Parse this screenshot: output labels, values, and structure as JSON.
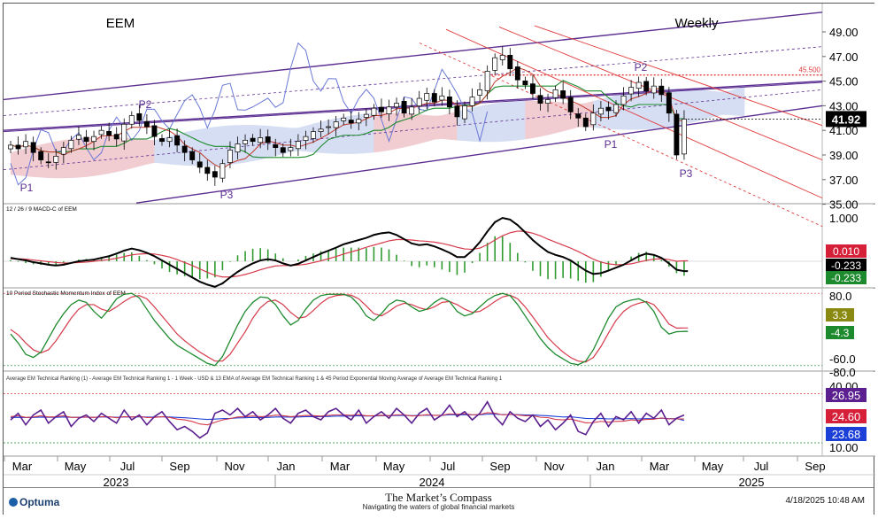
{
  "chart_data": [
    {
      "type": "candlestick",
      "title": "EEM",
      "subtitle": "Weekly",
      "y_ticks": [
        "49.00",
        "47.00",
        "45.00",
        "43.00",
        "41.00",
        "39.00",
        "37.00",
        "35.00"
      ],
      "ylim": [
        35,
        49
      ],
      "last_value": "41.92",
      "reference_level": {
        "value": 45.5,
        "label": "45.500"
      },
      "pivot_labels": [
        "P1",
        "P2",
        "P3",
        "P1",
        "P2",
        "P3"
      ],
      "weekly_close": [
        39.8,
        39.5,
        40.1,
        39.2,
        38.6,
        38.4,
        38.9,
        39.6,
        40.2,
        40.6,
        40.1,
        40.5,
        41.0,
        40.6,
        40.3,
        41.5,
        42.2,
        41.8,
        41.3,
        40.5,
        40.1,
        40.4,
        39.8,
        39.2,
        38.6,
        38.0,
        37.5,
        37.2,
        38.3,
        39.4,
        39.9,
        40.2,
        40.1,
        40.4,
        40.0,
        39.6,
        39.2,
        39.6,
        40.1,
        40.5,
        40.9,
        41.1,
        41.3,
        41.7,
        42.0,
        41.6,
        41.9,
        42.3,
        42.8,
        42.5,
        42.9,
        43.2,
        42.4,
        42.9,
        43.6,
        44.0,
        43.3,
        43.8,
        42.9,
        42.1,
        43.0,
        43.7,
        44.3,
        45.8,
        46.9,
        47.1,
        46.0,
        45.1,
        44.7,
        44.0,
        43.2,
        43.5,
        44.3,
        43.6,
        42.5,
        42.0,
        41.3,
        42.4,
        42.8,
        42.6,
        43.1,
        43.8,
        44.5,
        44.9,
        44.2,
        44.6,
        43.9,
        42.4,
        39.0,
        41.92
      ]
    },
    {
      "type": "line",
      "title": "12 / 26 / 9 MACD-C of EEM",
      "y_ticks": [
        "1.000"
      ],
      "badges": [
        "0.010",
        "-0.233",
        "-0.233"
      ],
      "macd": [
        0.08,
        0.05,
        0.02,
        -0.02,
        -0.05,
        -0.08,
        -0.1,
        -0.08,
        -0.04,
        0.0,
        0.02,
        0.04,
        0.08,
        0.12,
        0.18,
        0.25,
        0.3,
        0.26,
        0.2,
        0.12,
        0.02,
        -0.08,
        -0.18,
        -0.28,
        -0.38,
        -0.48,
        -0.55,
        -0.6,
        -0.52,
        -0.38,
        -0.25,
        -0.14,
        -0.05,
        0.02,
        0.05,
        0.02,
        -0.05,
        -0.1,
        -0.06,
        0.02,
        0.1,
        0.18,
        0.25,
        0.32,
        0.4,
        0.45,
        0.5,
        0.55,
        0.62,
        0.66,
        0.68,
        0.62,
        0.52,
        0.42,
        0.38,
        0.4,
        0.35,
        0.28,
        0.2,
        0.1,
        0.1,
        0.25,
        0.45,
        0.7,
        0.92,
        1.02,
        0.98,
        0.85,
        0.68,
        0.5,
        0.35,
        0.22,
        0.15,
        0.1,
        0.02,
        -0.1,
        -0.22,
        -0.3,
        -0.28,
        -0.22,
        -0.15,
        -0.08,
        0.02,
        0.12,
        0.18,
        0.15,
        0.08,
        -0.05,
        -0.2,
        -0.233
      ],
      "signal": [
        0.06,
        0.06,
        0.05,
        0.03,
        0.01,
        -0.01,
        -0.03,
        -0.04,
        -0.04,
        -0.03,
        -0.02,
        0.0,
        0.02,
        0.04,
        0.07,
        0.11,
        0.15,
        0.17,
        0.18,
        0.17,
        0.14,
        0.1,
        0.04,
        -0.03,
        -0.1,
        -0.18,
        -0.26,
        -0.33,
        -0.37,
        -0.37,
        -0.35,
        -0.31,
        -0.26,
        -0.2,
        -0.15,
        -0.11,
        -0.1,
        -0.1,
        -0.09,
        -0.07,
        -0.03,
        0.01,
        0.06,
        0.11,
        0.17,
        0.22,
        0.27,
        0.33,
        0.38,
        0.43,
        0.48,
        0.51,
        0.51,
        0.5,
        0.48,
        0.47,
        0.45,
        0.42,
        0.38,
        0.33,
        0.29,
        0.28,
        0.31,
        0.39,
        0.5,
        0.6,
        0.67,
        0.71,
        0.7,
        0.66,
        0.6,
        0.52,
        0.45,
        0.38,
        0.31,
        0.23,
        0.14,
        0.05,
        -0.02,
        -0.06,
        -0.08,
        -0.08,
        -0.06,
        -0.02,
        0.02,
        0.05,
        0.06,
        0.04,
        0.0,
        0.01
      ]
    },
    {
      "type": "line",
      "title": "10 Period Stochastic Momentum Index of EEM",
      "y_ticks": [
        "80.0",
        "-60.0",
        "-80.0"
      ],
      "badges": [
        "3.3",
        "-4.3"
      ],
      "smi": [
        -10,
        -30,
        -55,
        -62,
        -50,
        -20,
        10,
        35,
        55,
        65,
        60,
        40,
        25,
        45,
        68,
        78,
        80,
        70,
        45,
        20,
        0,
        -20,
        -35,
        -45,
        -55,
        -65,
        -75,
        -80,
        -60,
        -25,
        10,
        40,
        60,
        72,
        70,
        55,
        30,
        10,
        20,
        45,
        65,
        75,
        78,
        78,
        78,
        72,
        55,
        30,
        20,
        35,
        55,
        65,
        62,
        50,
        40,
        45,
        60,
        70,
        62,
        40,
        30,
        35,
        50,
        65,
        75,
        80,
        75,
        55,
        30,
        5,
        -20,
        -40,
        -55,
        -65,
        -75,
        -78,
        -70,
        -45,
        -10,
        25,
        50,
        60,
        65,
        68,
        60,
        40,
        5,
        -10,
        -5,
        -4.3
      ],
      "smi_signal": [
        0,
        -12,
        -30,
        -45,
        -52,
        -45,
        -25,
        0,
        25,
        45,
        55,
        55,
        45,
        40,
        50,
        62,
        72,
        75,
        68,
        50,
        30,
        10,
        -10,
        -25,
        -38,
        -50,
        -60,
        -70,
        -70,
        -55,
        -30,
        -5,
        25,
        48,
        62,
        65,
        55,
        38,
        25,
        28,
        42,
        58,
        70,
        75,
        77,
        76,
        68,
        52,
        35,
        30,
        40,
        52,
        58,
        55,
        48,
        44,
        50,
        60,
        62,
        55,
        45,
        38,
        40,
        50,
        62,
        72,
        76,
        68,
        50,
        28,
        5,
        -18,
        -35,
        -50,
        -62,
        -70,
        -72,
        -62,
        -38,
        -8,
        20,
        40,
        52,
        58,
        62,
        55,
        35,
        12,
        3,
        3.3
      ]
    },
    {
      "type": "line",
      "title": "Average EM Technical Ranking (1) - Average EM Technical Ranking 1 - 1 Week - USD & 13 EMA of Average EM Technical Ranking 1 & 45 Period Exponential Moving Average of Average EM Technical Ranking 1",
      "y_ticks": [
        "40.00",
        "10.00"
      ],
      "badges": [
        "26.95",
        "24.60",
        "23.68"
      ],
      "ranking": [
        24,
        28,
        21,
        27,
        30,
        22,
        26,
        29,
        20,
        25,
        27,
        23,
        28,
        25,
        22,
        30,
        24,
        27,
        21,
        26,
        29,
        23,
        18,
        20,
        17,
        13,
        16,
        28,
        30,
        27,
        31,
        26,
        29,
        24,
        27,
        31,
        25,
        22,
        28,
        30,
        26,
        24,
        29,
        31,
        27,
        24,
        30,
        22,
        26,
        29,
        25,
        31,
        27,
        22,
        28,
        31,
        24,
        27,
        33,
        26,
        29,
        24,
        28,
        35,
        26,
        21,
        29,
        25,
        23,
        27,
        20,
        24,
        18,
        22,
        27,
        17,
        15,
        23,
        28,
        20,
        26,
        24,
        29,
        22,
        28,
        25,
        30,
        21,
        25,
        26.95
      ],
      "ema13": [
        26,
        26.5,
        25.5,
        25.8,
        26.5,
        25.8,
        25.9,
        26.5,
        25.6,
        25.5,
        25.8,
        25.5,
        26,
        25.9,
        25.3,
        26,
        25.8,
        26.1,
        25.4,
        25.5,
        26,
        25.5,
        24.5,
        24,
        23,
        21.5,
        21,
        22.5,
        24,
        24.8,
        25.8,
        25.9,
        26.4,
        26,
        26.2,
        26.9,
        26.6,
        26.0,
        26.3,
        26.7,
        26.6,
        26.3,
        26.7,
        27.1,
        27.1,
        26.8,
        27.2,
        26.5,
        26.5,
        26.8,
        26.6,
        27.1,
        27.1,
        26.4,
        26.6,
        27.2,
        26.7,
        26.8,
        27.7,
        27.5,
        27.7,
        27.1,
        27.3,
        28.4,
        28.1,
        27.1,
        27.4,
        27.0,
        26.5,
        26.6,
        25.6,
        25.4,
        24.3,
        24,
        24.5,
        23.4,
        22.2,
        22.3,
        23.1,
        22.6,
        23.1,
        23.2,
        24,
        23.7,
        24.3,
        24.4,
        25.2,
        24.6,
        24.6,
        24.6
      ],
      "ema45": [
        25.5,
        25.6,
        25.4,
        25.5,
        25.7,
        25.6,
        25.6,
        25.8,
        25.6,
        25.6,
        25.7,
        25.6,
        25.8,
        25.8,
        25.6,
        25.8,
        25.8,
        25.9,
        25.7,
        25.7,
        25.9,
        25.8,
        25.5,
        25.3,
        25.0,
        24.6,
        24.3,
        24.5,
        24.8,
        24.9,
        25.2,
        25.3,
        25.5,
        25.4,
        25.5,
        25.8,
        25.8,
        25.7,
        25.8,
        26.0,
        26.0,
        26.0,
        26.1,
        26.3,
        26.4,
        26.3,
        26.5,
        26.4,
        26.4,
        26.5,
        26.5,
        26.7,
        26.7,
        26.6,
        26.7,
        26.9,
        26.8,
        26.8,
        27.1,
        27.1,
        27.2,
        27.1,
        27.1,
        27.5,
        27.5,
        27.2,
        27.3,
        27.2,
        27.0,
        27.0,
        26.7,
        26.5,
        26.1,
        25.8,
        25.9,
        25.4,
        24.9,
        24.8,
        24.9,
        24.6,
        24.7,
        24.7,
        24.8,
        24.6,
        24.8,
        24.8,
        25.0,
        24.8,
        24.8,
        23.68
      ]
    }
  ],
  "x_axis": {
    "months": [
      "Mar",
      "May",
      "Jul",
      "Sep",
      "Nov",
      "Jan",
      "Mar",
      "May",
      "Jul",
      "Sep",
      "Nov",
      "Jan",
      "Mar",
      "May",
      "Jul",
      "Sep"
    ],
    "years": [
      "2023",
      "2024",
      "2025"
    ]
  },
  "footer": {
    "logo": "Optuma",
    "brand": "The Market’s Compass",
    "tagline": "Navigating the waters of global financial markets",
    "timestamp": "4/18/2025 10:48 AM"
  },
  "colors": {
    "candle_up": "#ffffff",
    "candle_down": "#000000",
    "channel": "#5b2d91",
    "fib_lines": "#e03c3c",
    "cloud_bull": "#c8d3ef",
    "cloud_bear": "#f6c9c9",
    "conversion_line": "#c0392b",
    "base_line": "#1e8a2e",
    "lagging_span": "#6a78d6",
    "macd_line": "#000000",
    "signal_line": "#d63a4a",
    "histogram": "#2e9a2e",
    "badge_red": "#d6203a",
    "badge_black": "#000000",
    "badge_green": "#1e8a2e",
    "badge_olive": "#8a8a12",
    "badge_purple": "#5b1f8f",
    "badge_blue": "#1c3fd8",
    "ranking_line": "#5b1f8f",
    "ranking_ema13": "#d63a4a",
    "ranking_ema45": "#1c3fd8"
  }
}
